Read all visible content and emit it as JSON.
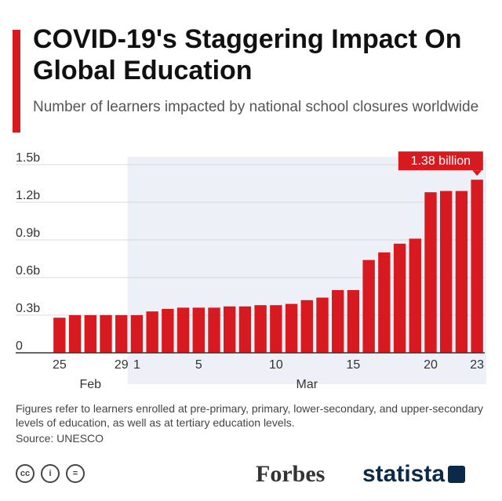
{
  "header": {
    "title": "COVID-19's Staggering Impact On Global Education",
    "subtitle": "Number of learners impacted by national school closures worldwide"
  },
  "chart_data": {
    "type": "bar",
    "title": "COVID-19's Staggering Impact On Global Education",
    "subtitle": "Number of learners impacted by national school closures worldwide",
    "xlabel": "",
    "ylabel": "",
    "ylim": [
      0,
      1.5
    ],
    "yticks": [
      {
        "value": 0,
        "label": "0"
      },
      {
        "value": 0.3,
        "label": "0.3b"
      },
      {
        "value": 0.6,
        "label": "0.6b"
      },
      {
        "value": 0.9,
        "label": "0.9b"
      },
      {
        "value": 1.2,
        "label": "1.2b"
      },
      {
        "value": 1.5,
        "label": "1.5b"
      }
    ],
    "grid": true,
    "categories": [
      "Feb 25",
      "Feb 26",
      "Feb 27",
      "Feb 28",
      "Feb 29",
      "Mar 1",
      "Mar 2",
      "Mar 3",
      "Mar 4",
      "Mar 5",
      "Mar 6",
      "Mar 7",
      "Mar 8",
      "Mar 9",
      "Mar 10",
      "Mar 11",
      "Mar 12",
      "Mar 13",
      "Mar 14",
      "Mar 15",
      "Mar 16",
      "Mar 17",
      "Mar 18",
      "Mar 19",
      "Mar 20",
      "Mar 21",
      "Mar 22",
      "Mar 23"
    ],
    "values": [
      0.28,
      0.3,
      0.3,
      0.3,
      0.3,
      0.3,
      0.33,
      0.35,
      0.36,
      0.36,
      0.36,
      0.37,
      0.37,
      0.38,
      0.38,
      0.39,
      0.42,
      0.44,
      0.5,
      0.5,
      0.74,
      0.8,
      0.87,
      0.91,
      1.28,
      1.29,
      1.29,
      1.38
    ],
    "xticks": [
      {
        "index": 0,
        "label": "25"
      },
      {
        "index": 4,
        "label": "29"
      },
      {
        "index": 5,
        "label": "1"
      },
      {
        "index": 9,
        "label": "5"
      },
      {
        "index": 14,
        "label": "10"
      },
      {
        "index": 19,
        "label": "15"
      },
      {
        "index": 24,
        "label": "20"
      },
      {
        "index": 27,
        "label": "23"
      }
    ],
    "month_labels": [
      {
        "index": 2,
        "label": "Feb"
      },
      {
        "index": 16,
        "label": "Mar"
      }
    ],
    "shade_start_index": 5,
    "callout": {
      "index": 27,
      "label": "1.38 billion"
    },
    "colors": {
      "bar": "#d71920",
      "shade": "#eef0f7",
      "grid": "#d9d9d9",
      "axis": "#333333",
      "callout": "#d71920"
    }
  },
  "footer": {
    "note": "Figures refer to learners enrolled at pre-primary, primary, lower-secondary, and upper-secondary levels of education, as well as at tertiary education levels.",
    "source": "Source: UNESCO",
    "license_icons": [
      "cc-icon",
      "by-icon",
      "nd-icon"
    ],
    "cc_glyphs": [
      "cc",
      "i",
      "="
    ],
    "forbes_logo": "Forbes",
    "statista_logo": "statista"
  }
}
